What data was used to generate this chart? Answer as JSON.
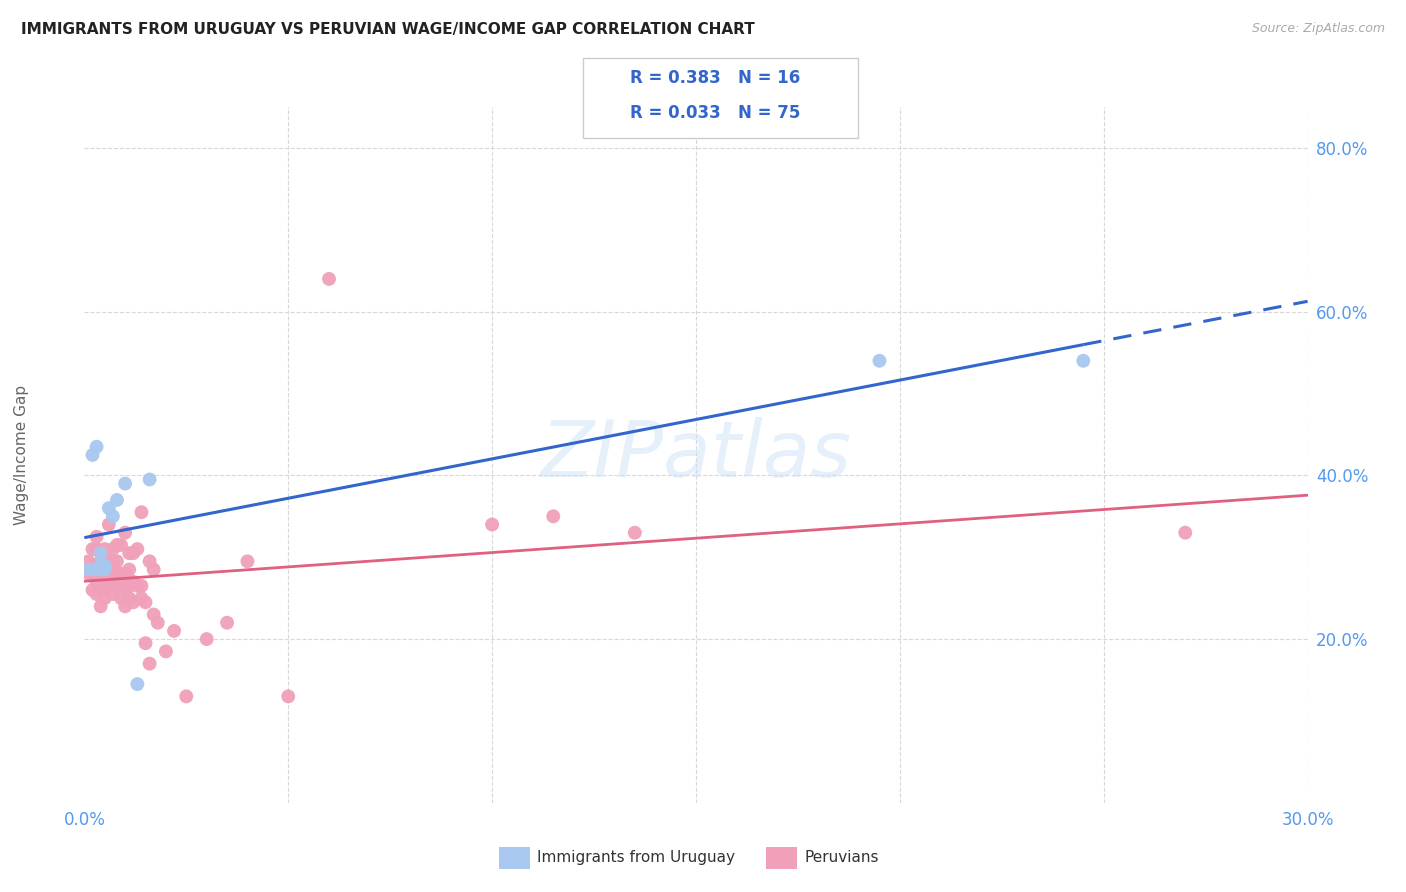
{
  "title": "IMMIGRANTS FROM URUGUAY VS PERUVIAN WAGE/INCOME GAP CORRELATION CHART",
  "source": "Source: ZipAtlas.com",
  "ylabel": "Wage/Income Gap",
  "xlim": [
    0.0,
    0.3
  ],
  "ylim": [
    0.0,
    0.85
  ],
  "xticks": [
    0.0,
    0.05,
    0.1,
    0.15,
    0.2,
    0.25,
    0.3
  ],
  "xticklabels": [
    "0.0%",
    "",
    "",
    "",
    "",
    "",
    "30.0%"
  ],
  "yticks": [
    0.0,
    0.2,
    0.4,
    0.6,
    0.8
  ],
  "yticklabels": [
    "",
    "20.0%",
    "40.0%",
    "60.0%",
    "80.0%"
  ],
  "background_color": "#ffffff",
  "grid_color": "#d8d8d8",
  "uruguay_color": "#a8c8f0",
  "peru_color": "#f0a0b8",
  "uruguay_line_color": "#3366cc",
  "peru_line_color": "#e06080",
  "uruguay_R": 0.383,
  "uruguay_N": 16,
  "peru_R": 0.033,
  "peru_N": 75,
  "uruguay_x": [
    0.001,
    0.002,
    0.003,
    0.003,
    0.004,
    0.004,
    0.005,
    0.005,
    0.006,
    0.007,
    0.008,
    0.01,
    0.013,
    0.016,
    0.195,
    0.245
  ],
  "uruguay_y": [
    0.285,
    0.425,
    0.435,
    0.285,
    0.305,
    0.29,
    0.29,
    0.285,
    0.36,
    0.35,
    0.37,
    0.39,
    0.145,
    0.395,
    0.54,
    0.54
  ],
  "peru_x": [
    0.001,
    0.001,
    0.001,
    0.002,
    0.002,
    0.002,
    0.002,
    0.003,
    0.003,
    0.003,
    0.003,
    0.003,
    0.004,
    0.004,
    0.004,
    0.004,
    0.005,
    0.005,
    0.005,
    0.005,
    0.005,
    0.006,
    0.006,
    0.006,
    0.006,
    0.006,
    0.007,
    0.007,
    0.007,
    0.007,
    0.007,
    0.007,
    0.008,
    0.008,
    0.008,
    0.008,
    0.009,
    0.009,
    0.009,
    0.009,
    0.01,
    0.01,
    0.01,
    0.01,
    0.011,
    0.011,
    0.011,
    0.011,
    0.012,
    0.012,
    0.012,
    0.013,
    0.013,
    0.014,
    0.014,
    0.014,
    0.015,
    0.015,
    0.016,
    0.016,
    0.017,
    0.017,
    0.018,
    0.02,
    0.022,
    0.025,
    0.03,
    0.035,
    0.04,
    0.05,
    0.06,
    0.1,
    0.115,
    0.135,
    0.27
  ],
  "peru_y": [
    0.28,
    0.285,
    0.295,
    0.26,
    0.28,
    0.29,
    0.31,
    0.255,
    0.27,
    0.28,
    0.31,
    0.325,
    0.24,
    0.26,
    0.28,
    0.295,
    0.25,
    0.265,
    0.28,
    0.295,
    0.31,
    0.265,
    0.27,
    0.28,
    0.295,
    0.34,
    0.255,
    0.265,
    0.275,
    0.285,
    0.295,
    0.31,
    0.265,
    0.28,
    0.295,
    0.315,
    0.25,
    0.265,
    0.28,
    0.315,
    0.24,
    0.26,
    0.28,
    0.33,
    0.25,
    0.265,
    0.285,
    0.305,
    0.245,
    0.27,
    0.305,
    0.265,
    0.31,
    0.25,
    0.265,
    0.355,
    0.195,
    0.245,
    0.17,
    0.295,
    0.23,
    0.285,
    0.22,
    0.185,
    0.21,
    0.13,
    0.2,
    0.22,
    0.295,
    0.13,
    0.64,
    0.34,
    0.35,
    0.33,
    0.33
  ]
}
